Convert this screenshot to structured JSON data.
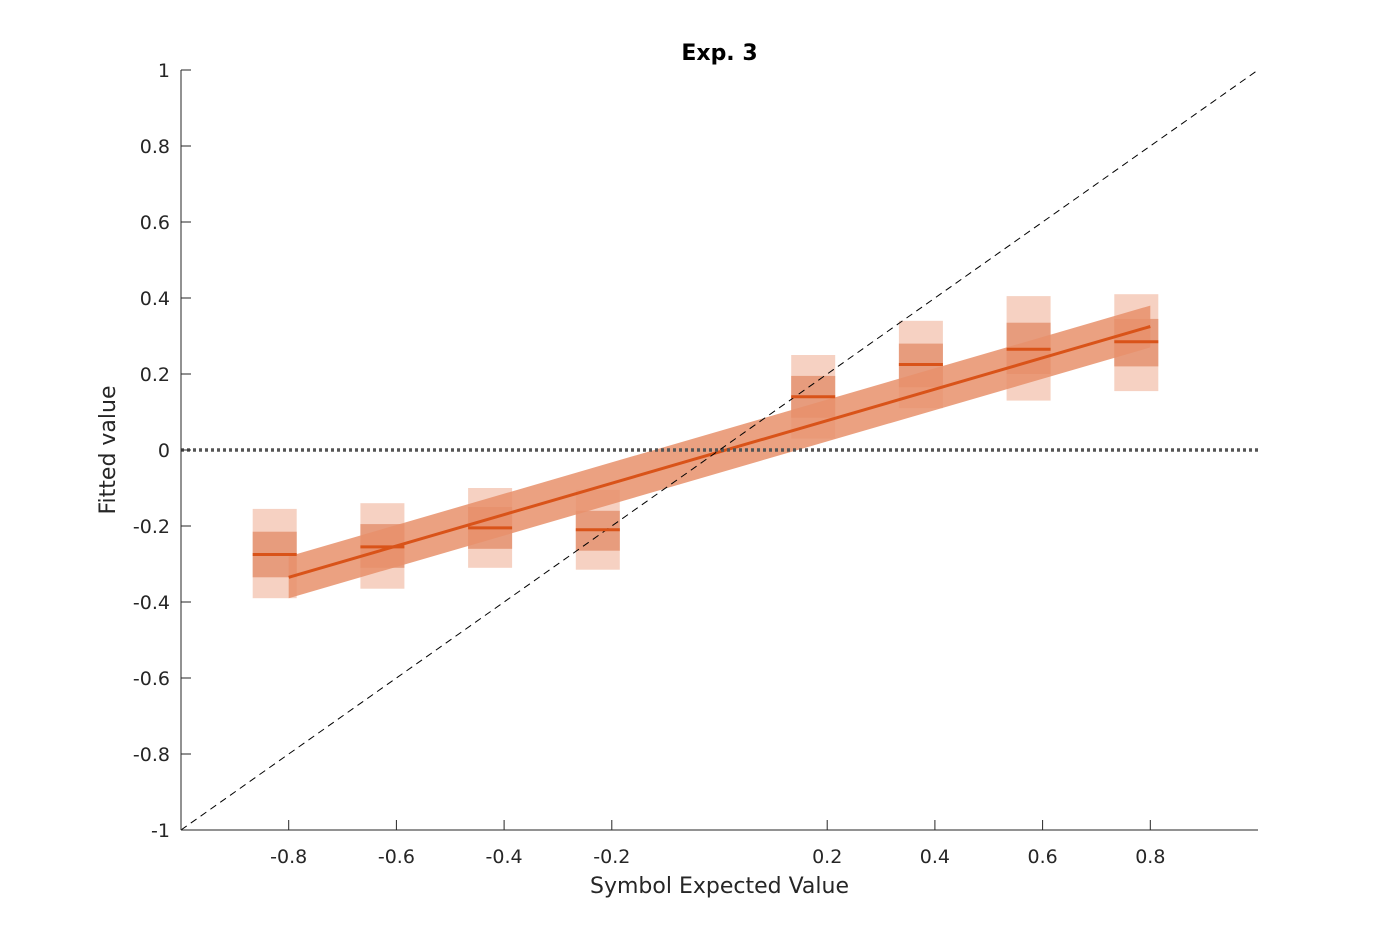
{
  "chart_data": {
    "type": "scatter",
    "title": "Exp. 3",
    "xlabel": "Symbol Expected Value",
    "ylabel": "Fitted value",
    "xlim": [
      -1,
      1
    ],
    "ylim": [
      -1,
      1
    ],
    "xticks": [
      -0.8,
      -0.6,
      -0.4,
      -0.2,
      0.2,
      0.4,
      0.6,
      0.8
    ],
    "xtick_labels": [
      "-0.8",
      "-0.6",
      "-0.4",
      "-0.2",
      "0.2",
      "0.4",
      "0.6",
      "0.8"
    ],
    "yticks": [
      1,
      0.8,
      0.6,
      0.4,
      0.2,
      0,
      -0.2,
      -0.4,
      -0.6,
      -0.8,
      -1
    ],
    "ytick_labels": [
      "1",
      "0.8",
      "0.6",
      "0.4",
      "0.2",
      "0",
      "-0.2",
      "-0.4",
      "-0.6",
      "-0.8",
      "-1"
    ],
    "colors": {
      "accent": "#d95319",
      "ci_outer": "#f6d1c2",
      "ci_inner": "#e79c7d",
      "fit_band": "#e8906b",
      "zero_line": "#555555",
      "identity_line": "#000000"
    },
    "points": [
      {
        "x": -0.8,
        "mean": -0.275,
        "inner": [
          -0.335,
          -0.215
        ],
        "outer": [
          -0.39,
          -0.155
        ]
      },
      {
        "x": -0.6,
        "mean": -0.255,
        "inner": [
          -0.31,
          -0.195
        ],
        "outer": [
          -0.365,
          -0.14
        ]
      },
      {
        "x": -0.4,
        "mean": -0.205,
        "inner": [
          -0.26,
          -0.15
        ],
        "outer": [
          -0.31,
          -0.1
        ]
      },
      {
        "x": -0.2,
        "mean": -0.21,
        "inner": [
          -0.265,
          -0.16
        ],
        "outer": [
          -0.315,
          -0.105
        ]
      },
      {
        "x": 0.2,
        "mean": 0.14,
        "inner": [
          0.085,
          0.195
        ],
        "outer": [
          0.03,
          0.25
        ]
      },
      {
        "x": 0.4,
        "mean": 0.225,
        "inner": [
          0.165,
          0.28
        ],
        "outer": [
          0.11,
          0.34
        ]
      },
      {
        "x": 0.6,
        "mean": 0.265,
        "inner": [
          0.2,
          0.335
        ],
        "outer": [
          0.13,
          0.405
        ]
      },
      {
        "x": 0.8,
        "mean": 0.285,
        "inner": [
          0.22,
          0.345
        ],
        "outer": [
          0.155,
          0.41
        ]
      }
    ],
    "fit": {
      "x": [
        -0.8,
        0.8
      ],
      "y": [
        -0.335,
        0.325
      ],
      "band_halfwidth": 0.055
    },
    "reference_lines": {
      "zero": 0,
      "identity": true
    },
    "grid": false,
    "legend": "none"
  }
}
